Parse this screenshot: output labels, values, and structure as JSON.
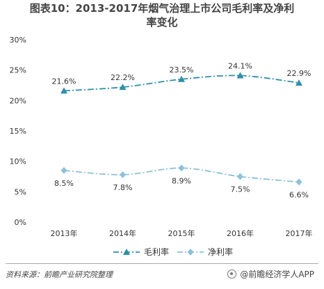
{
  "title_line1": "图表10：2013-2017年烟气治理上市公司毛利率及净利",
  "title_line2": "率变化",
  "footer": {
    "source": "资料来源：前瞻产业研究院整理",
    "brand": "@前瞻经济学人APP"
  },
  "colors": {
    "gross": "#2E8FA8",
    "net": "#8EC1DA",
    "axis_text": "#333333",
    "grid": "#E6E6E6"
  },
  "chart_data": {
    "type": "line",
    "categories": [
      "2013年",
      "2014年",
      "2015年",
      "2016年",
      "2017年"
    ],
    "y_ticks": [
      "0%",
      "5%",
      "10%",
      "15%",
      "20%",
      "25%",
      "30%"
    ],
    "ylim": [
      0,
      30
    ],
    "grid": false,
    "legend_position": "bottom",
    "series": [
      {
        "name": "毛利率",
        "values": [
          21.6,
          22.2,
          23.5,
          24.1,
          22.9
        ],
        "labels": [
          "21.6%",
          "22.2%",
          "23.5%",
          "24.1%",
          "22.9%"
        ],
        "marker": "triangle"
      },
      {
        "name": "净利率",
        "values": [
          8.5,
          7.8,
          8.9,
          7.5,
          6.6
        ],
        "labels": [
          "8.5%",
          "7.8%",
          "8.9%",
          "7.5%",
          "6.6%"
        ],
        "marker": "diamond"
      }
    ]
  }
}
